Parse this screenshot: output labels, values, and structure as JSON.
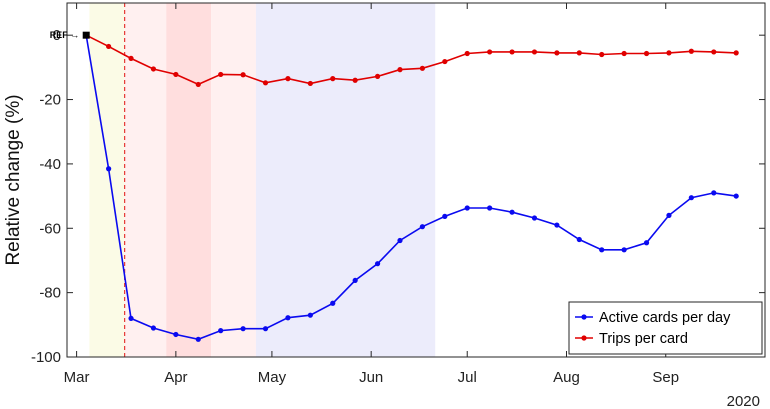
{
  "chart_data": {
    "type": "line",
    "ylabel": "Relative change (%)",
    "ylim": [
      -100,
      10
    ],
    "yticks": [
      0,
      -20,
      -40,
      -60,
      -80,
      -100
    ],
    "xlim": [
      "2020-02-27",
      "2020-10-02"
    ],
    "xticks": [
      {
        "date": "2020-03-01",
        "label": "Mar"
      },
      {
        "date": "2020-04-01",
        "label": "Apr"
      },
      {
        "date": "2020-05-01",
        "label": "May"
      },
      {
        "date": "2020-06-01",
        "label": "Jun"
      },
      {
        "date": "2020-07-01",
        "label": "Jul"
      },
      {
        "date": "2020-08-01",
        "label": "Aug"
      },
      {
        "date": "2020-09-01",
        "label": "Sep"
      }
    ],
    "year_label": "2020",
    "grid": false,
    "legend_position": "bottom-right",
    "reference_marker": {
      "label": "REF →",
      "date": "2020-03-04",
      "value": 0
    },
    "vertical_line": {
      "date": "2020-03-16",
      "color": "#e53935",
      "style": "dashed"
    },
    "shaded_periods": [
      {
        "start": "2020-03-05",
        "end": "2020-03-16",
        "color": "#fbfbe6"
      },
      {
        "start": "2020-03-16",
        "end": "2020-03-29",
        "color": "#fff0f0"
      },
      {
        "start": "2020-03-29",
        "end": "2020-04-12",
        "color": "#ffdede"
      },
      {
        "start": "2020-04-12",
        "end": "2020-04-26",
        "color": "#fff0f0"
      },
      {
        "start": "2020-04-26",
        "end": "2020-06-21",
        "color": "#ececfb"
      }
    ],
    "series": [
      {
        "name": "Active cards per day",
        "color": "#0a0af0",
        "points": [
          [
            "2020-03-04",
            0
          ],
          [
            "2020-03-11",
            -41.5
          ],
          [
            "2020-03-18",
            -88
          ],
          [
            "2020-03-25",
            -91
          ],
          [
            "2020-04-01",
            -93
          ],
          [
            "2020-04-08",
            -94.5
          ],
          [
            "2020-04-15",
            -91.8
          ],
          [
            "2020-04-22",
            -91.2
          ],
          [
            "2020-04-29",
            -91.2
          ],
          [
            "2020-05-06",
            -87.8
          ],
          [
            "2020-05-13",
            -87
          ],
          [
            "2020-05-20",
            -83.3
          ],
          [
            "2020-05-27",
            -76.2
          ],
          [
            "2020-06-03",
            -71
          ],
          [
            "2020-06-10",
            -63.8
          ],
          [
            "2020-06-17",
            -59.5
          ],
          [
            "2020-06-24",
            -56.3
          ],
          [
            "2020-07-01",
            -53.7
          ],
          [
            "2020-07-08",
            -53.7
          ],
          [
            "2020-07-15",
            -55
          ],
          [
            "2020-07-22",
            -56.8
          ],
          [
            "2020-07-29",
            -59
          ],
          [
            "2020-08-05",
            -63.5
          ],
          [
            "2020-08-12",
            -66.7
          ],
          [
            "2020-08-19",
            -66.7
          ],
          [
            "2020-08-26",
            -64.5
          ],
          [
            "2020-09-02",
            -56
          ],
          [
            "2020-09-09",
            -50.5
          ],
          [
            "2020-09-16",
            -49
          ],
          [
            "2020-09-23",
            -50
          ]
        ]
      },
      {
        "name": "Trips per card",
        "color": "#e00000",
        "points": [
          [
            "2020-03-04",
            0
          ],
          [
            "2020-03-11",
            -3.5
          ],
          [
            "2020-03-18",
            -7.2
          ],
          [
            "2020-03-25",
            -10.5
          ],
          [
            "2020-04-01",
            -12.2
          ],
          [
            "2020-04-08",
            -15.3
          ],
          [
            "2020-04-15",
            -12.2
          ],
          [
            "2020-04-22",
            -12.3
          ],
          [
            "2020-04-29",
            -14.8
          ],
          [
            "2020-05-06",
            -13.5
          ],
          [
            "2020-05-13",
            -15
          ],
          [
            "2020-05-20",
            -13.5
          ],
          [
            "2020-05-27",
            -14
          ],
          [
            "2020-06-03",
            -12.8
          ],
          [
            "2020-06-10",
            -10.7
          ],
          [
            "2020-06-17",
            -10.3
          ],
          [
            "2020-06-24",
            -8.2
          ],
          [
            "2020-07-01",
            -5.7
          ],
          [
            "2020-07-08",
            -5.2
          ],
          [
            "2020-07-15",
            -5.2
          ],
          [
            "2020-07-22",
            -5.2
          ],
          [
            "2020-07-29",
            -5.5
          ],
          [
            "2020-08-05",
            -5.5
          ],
          [
            "2020-08-12",
            -6
          ],
          [
            "2020-08-19",
            -5.7
          ],
          [
            "2020-08-26",
            -5.7
          ],
          [
            "2020-09-02",
            -5.5
          ],
          [
            "2020-09-09",
            -5
          ],
          [
            "2020-09-16",
            -5.2
          ],
          [
            "2020-09-23",
            -5.5
          ]
        ]
      }
    ]
  }
}
